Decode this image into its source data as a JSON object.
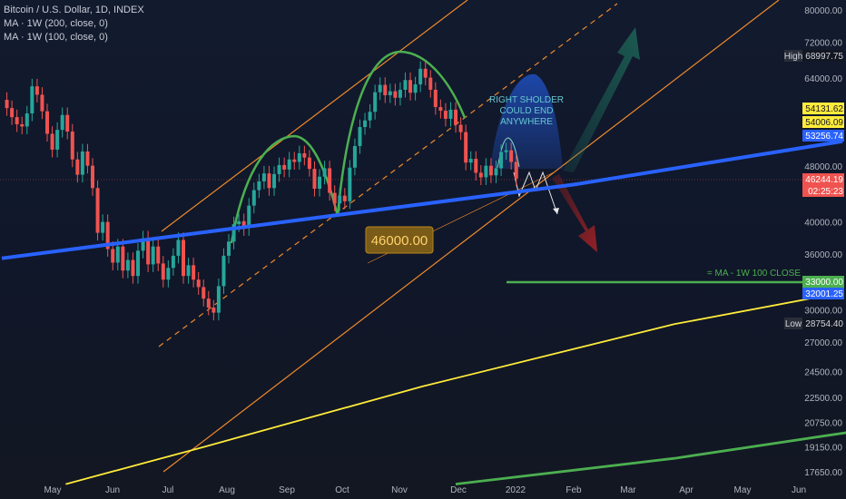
{
  "header": {
    "symbol_title": "Bitcoin / U.S. Dollar, 1D, INDEX",
    "indicators": [
      "MA · 1W (200, close, 0)",
      "MA · 1W (100, close, 0)"
    ]
  },
  "colors": {
    "background": "#131722",
    "candle_up": "#26a69a",
    "candle_down": "#ef5350",
    "trendline": "#2962ff",
    "channel": "#f0892b",
    "arc": "#4caf50",
    "ma200": "#ffeb3b",
    "ma100": "#4caf50"
  },
  "chart_data": {
    "type": "candlestick",
    "scale": "log",
    "ylim": [
      17000,
      85000
    ],
    "x_ticks": [
      "May",
      "Jun",
      "Jul",
      "Aug",
      "Sep",
      "Oct",
      "Nov",
      "Dec",
      "2022",
      "Feb",
      "Mar",
      "Apr",
      "May",
      "Jun"
    ],
    "y_ticks": [
      "80000.00",
      "72000.00",
      "64000.00",
      "56000.00",
      "48000.00",
      "40000.00",
      "36000.00",
      "30000.00",
      "27000.00",
      "24500.00",
      "22500.00",
      "20750.00",
      "19150.00",
      "17650.00"
    ],
    "price_labels": [
      {
        "prefix": "High",
        "value": "68997.75",
        "bg": "#131722",
        "fg": "#d1d4dc"
      },
      {
        "prefix": "",
        "value": "54131.62",
        "bg": "#ffeb3b",
        "fg": "#131722"
      },
      {
        "prefix": "",
        "value": "54006.09",
        "bg": "#ffeb3b",
        "fg": "#131722"
      },
      {
        "prefix": "",
        "value": "53256.74",
        "bg": "#2962ff",
        "fg": "#ffffff"
      },
      {
        "prefix": "",
        "value": "46244.19",
        "bg": "#ef5350",
        "fg": "#ffffff"
      },
      {
        "prefix": "",
        "value": "02:25:23",
        "bg": "#ef5350",
        "fg": "#ffffff"
      },
      {
        "prefix": "",
        "value": "33000.00",
        "bg": "#4caf50",
        "fg": "#ffffff"
      },
      {
        "prefix": "",
        "value": "32001.25",
        "bg": "#2962ff",
        "fg": "#ffffff"
      },
      {
        "prefix": "Low",
        "value": "28754.40",
        "bg": "#131722",
        "fg": "#d1d4dc"
      }
    ],
    "annotations": {
      "shoulder_note": [
        "RIGHT SHOLDER",
        "COULD END",
        "ANYWHERE"
      ],
      "level_label": "46000.00",
      "ma_line_label": "= MA - 1W 100 CLOSE"
    },
    "series": [
      {
        "points": [
          [
            0,
            59800
          ],
          [
            3,
            58200
          ],
          [
            6,
            56500
          ],
          [
            9,
            55200
          ],
          [
            12,
            54800
          ],
          [
            15,
            57200
          ],
          [
            18,
            62500
          ],
          [
            21,
            60800
          ],
          [
            24,
            57600
          ],
          [
            27,
            53500
          ],
          [
            30,
            50800
          ],
          [
            33,
            54200
          ],
          [
            36,
            56900
          ],
          [
            39,
            53900
          ],
          [
            42,
            49200
          ],
          [
            45,
            46800
          ],
          [
            48,
            50500
          ],
          [
            51,
            48200
          ],
          [
            54,
            44800
          ],
          [
            57,
            38700
          ],
          [
            60,
            40100
          ],
          [
            63,
            36700
          ],
          [
            66,
            35100
          ],
          [
            69,
            37000
          ],
          [
            72,
            34200
          ],
          [
            75,
            35400
          ],
          [
            78,
            33600
          ],
          [
            81,
            36500
          ],
          [
            84,
            38000
          ],
          [
            87,
            34900
          ],
          [
            90,
            37000
          ],
          [
            93,
            35000
          ],
          [
            96,
            33200
          ],
          [
            99,
            34500
          ],
          [
            102,
            35900
          ],
          [
            105,
            37800
          ],
          [
            108,
            33600
          ],
          [
            111,
            34800
          ],
          [
            114,
            33200
          ],
          [
            117,
            32400
          ],
          [
            120,
            31200
          ],
          [
            123,
            30300
          ],
          [
            126,
            29800
          ],
          [
            129,
            32500
          ],
          [
            132,
            35900
          ],
          [
            135,
            37600
          ],
          [
            138,
            39800
          ],
          [
            141,
            40200
          ],
          [
            144,
            39300
          ],
          [
            147,
            42300
          ],
          [
            150,
            44500
          ],
          [
            153,
            45800
          ],
          [
            156,
            47000
          ],
          [
            159,
            44800
          ],
          [
            162,
            46900
          ],
          [
            165,
            48300
          ],
          [
            168,
            47600
          ],
          [
            171,
            49200
          ],
          [
            174,
            48800
          ],
          [
            177,
            50200
          ],
          [
            180,
            49500
          ],
          [
            183,
            47700
          ],
          [
            186,
            44700
          ],
          [
            189,
            46500
          ],
          [
            192,
            47800
          ],
          [
            195,
            44100
          ],
          [
            198,
            42600
          ],
          [
            201,
            43700
          ],
          [
            204,
            42900
          ],
          [
            207,
            47900
          ],
          [
            210,
            51400
          ],
          [
            213,
            54700
          ],
          [
            216,
            55900
          ],
          [
            219,
            57500
          ],
          [
            222,
            61300
          ],
          [
            225,
            62800
          ],
          [
            228,
            60700
          ],
          [
            231,
            61500
          ],
          [
            234,
            60200
          ],
          [
            237,
            61800
          ],
          [
            240,
            63800
          ],
          [
            243,
            61200
          ],
          [
            246,
            62900
          ],
          [
            249,
            66200
          ],
          [
            252,
            64300
          ],
          [
            255,
            61800
          ],
          [
            258,
            58400
          ],
          [
            261,
            57700
          ],
          [
            264,
            56200
          ],
          [
            267,
            57900
          ],
          [
            270,
            55100
          ],
          [
            273,
            53800
          ],
          [
            276,
            48700
          ],
          [
            279,
            49300
          ],
          [
            282,
            47100
          ],
          [
            285,
            46400
          ],
          [
            288,
            48200
          ],
          [
            291,
            46700
          ],
          [
            294,
            47800
          ],
          [
            297,
            50400
          ],
          [
            300,
            50700
          ],
          [
            303,
            48800
          ],
          [
            306,
            46200
          ]
        ]
      },
      {
        "points": [
          [
            0,
            35600
          ],
          [
            340,
            45300
          ],
          [
            500,
            52200
          ]
        ]
      },
      {
        "points": [
          [
            38,
            17000
          ],
          [
            120,
            19200
          ],
          [
            250,
            23400
          ],
          [
            400,
            28700
          ],
          [
            496,
            31700
          ]
        ]
      },
      {
        "points": [
          [
            270,
            17000
          ],
          [
            400,
            18500
          ],
          [
            560,
            21100
          ],
          [
            700,
            23800
          ],
          [
            826,
            27000
          ]
        ]
      }
    ]
  }
}
